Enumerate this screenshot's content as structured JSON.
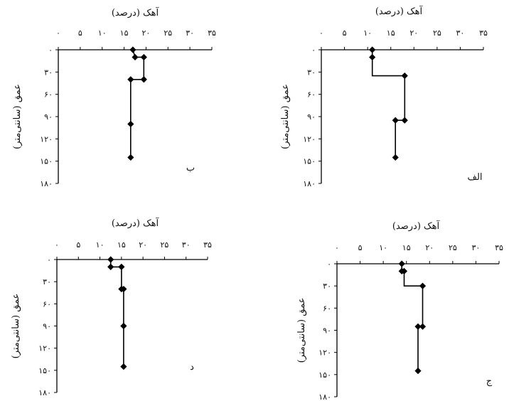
{
  "chart_data": [
    {
      "type": "line",
      "panel_label": "الف",
      "title": "آهک (درصد)",
      "ylabel": "عمق (سانتی‌متر)",
      "xlim": [
        0,
        35
      ],
      "ylim": [
        0,
        180
      ],
      "x_ticks": [
        "۰",
        "۵",
        "۱۰",
        "۱۵",
        "۲۰",
        "۲۵",
        "۳۰",
        "۳۵"
      ],
      "y_ticks": [
        "۰",
        "۳۰",
        "۶۰",
        "۹۰",
        "۱۲۰",
        "۱۵۰",
        "۱۸۰"
      ],
      "series": [
        {
          "points": [
            {
              "x": 11,
              "y": 0
            },
            {
              "x": 11,
              "y": 10
            },
            {
              "x": 11,
              "y": 10
            },
            {
              "x": 11,
              "y": 35
            },
            {
              "x": 18,
              "y": 35
            },
            {
              "x": 18,
              "y": 95
            },
            {
              "x": 16,
              "y": 95
            },
            {
              "x": 16,
              "y": 145
            }
          ],
          "markers": [
            {
              "x": 11,
              "y": 0
            },
            {
              "x": 11,
              "y": 10
            },
            {
              "x": 18,
              "y": 35
            },
            {
              "x": 18,
              "y": 95
            },
            {
              "x": 16,
              "y": 95
            },
            {
              "x": 16,
              "y": 145
            }
          ]
        }
      ]
    },
    {
      "type": "line",
      "panel_label": "ب",
      "title": "آهک (درصد)",
      "ylabel": "عمق (سانتی‌متر)",
      "xlim": [
        0,
        35
      ],
      "ylim": [
        0,
        180
      ],
      "x_ticks": [
        "۰",
        "۵",
        "۱۰",
        "۱۵",
        "۲۰",
        "۲۵",
        "۳۰",
        "۳۵"
      ],
      "y_ticks": [
        "۰",
        "۳۰",
        "۶۰",
        "۹۰",
        "۱۲۰",
        "۱۵۰",
        "۱۸۰"
      ],
      "series": [
        {
          "points": [
            {
              "x": 17,
              "y": 0
            },
            {
              "x": 17.5,
              "y": 10
            },
            {
              "x": 19.5,
              "y": 10
            },
            {
              "x": 19.5,
              "y": 40
            },
            {
              "x": 16.5,
              "y": 40
            },
            {
              "x": 16.5,
              "y": 100
            },
            {
              "x": 16.5,
              "y": 145
            }
          ],
          "markers": [
            {
              "x": 17,
              "y": 0
            },
            {
              "x": 17.5,
              "y": 10
            },
            {
              "x": 19.5,
              "y": 10
            },
            {
              "x": 19.5,
              "y": 40
            },
            {
              "x": 16.5,
              "y": 40
            },
            {
              "x": 16.5,
              "y": 100
            },
            {
              "x": 16.5,
              "y": 145
            }
          ]
        }
      ]
    },
    {
      "type": "line",
      "panel_label": "ج",
      "title": "آهک (درصد)",
      "ylabel": "عمق (سانتی‌متر)",
      "xlim": [
        0,
        35
      ],
      "ylim": [
        0,
        180
      ],
      "x_ticks": [
        "۰",
        "۵",
        "۱۰",
        "۱۵",
        "۲۰",
        "۲۵",
        "۳۰",
        "۳۵"
      ],
      "y_ticks": [
        "۰",
        "۳۰",
        "۶۰",
        "۹۰",
        "۱۲۰",
        "۱۵۰",
        "۱۸۰"
      ],
      "series": [
        {
          "points": [
            {
              "x": 14,
              "y": 0
            },
            {
              "x": 14,
              "y": 10
            },
            {
              "x": 14.5,
              "y": 10
            },
            {
              "x": 14.5,
              "y": 30
            },
            {
              "x": 18.5,
              "y": 30
            },
            {
              "x": 18.5,
              "y": 85
            },
            {
              "x": 17.5,
              "y": 85
            },
            {
              "x": 17.5,
              "y": 145
            }
          ],
          "markers": [
            {
              "x": 14,
              "y": 0
            },
            {
              "x": 14,
              "y": 10
            },
            {
              "x": 14.5,
              "y": 10
            },
            {
              "x": 18.5,
              "y": 30
            },
            {
              "x": 18.5,
              "y": 85
            },
            {
              "x": 17.5,
              "y": 85
            },
            {
              "x": 17.5,
              "y": 145
            }
          ]
        }
      ]
    },
    {
      "type": "line",
      "panel_label": "د",
      "title": "آهک (درصد)",
      "ylabel": "عمق (سانتی‌متر)",
      "xlim": [
        0,
        35
      ],
      "ylim": [
        0,
        180
      ],
      "x_ticks": [
        "۰",
        "۵",
        "۱۰",
        "۱۵",
        "۲۰",
        "۲۵",
        "۳۰",
        "۳۵"
      ],
      "y_ticks": [
        "۰",
        "۳۰",
        "۶۰",
        "۹۰",
        "۱۲۰",
        "۱۵۰",
        "۱۸۰"
      ],
      "series": [
        {
          "points": [
            {
              "x": 12.5,
              "y": 0
            },
            {
              "x": 12.5,
              "y": 10
            },
            {
              "x": 15,
              "y": 10
            },
            {
              "x": 15,
              "y": 40
            },
            {
              "x": 15.5,
              "y": 40
            },
            {
              "x": 15.5,
              "y": 90
            },
            {
              "x": 15.5,
              "y": 145
            }
          ],
          "markers": [
            {
              "x": 12.5,
              "y": 0
            },
            {
              "x": 12.5,
              "y": 10
            },
            {
              "x": 15,
              "y": 10
            },
            {
              "x": 15,
              "y": 40
            },
            {
              "x": 15.5,
              "y": 40
            },
            {
              "x": 15.5,
              "y": 90
            },
            {
              "x": 15.5,
              "y": 145
            }
          ]
        }
      ]
    }
  ]
}
